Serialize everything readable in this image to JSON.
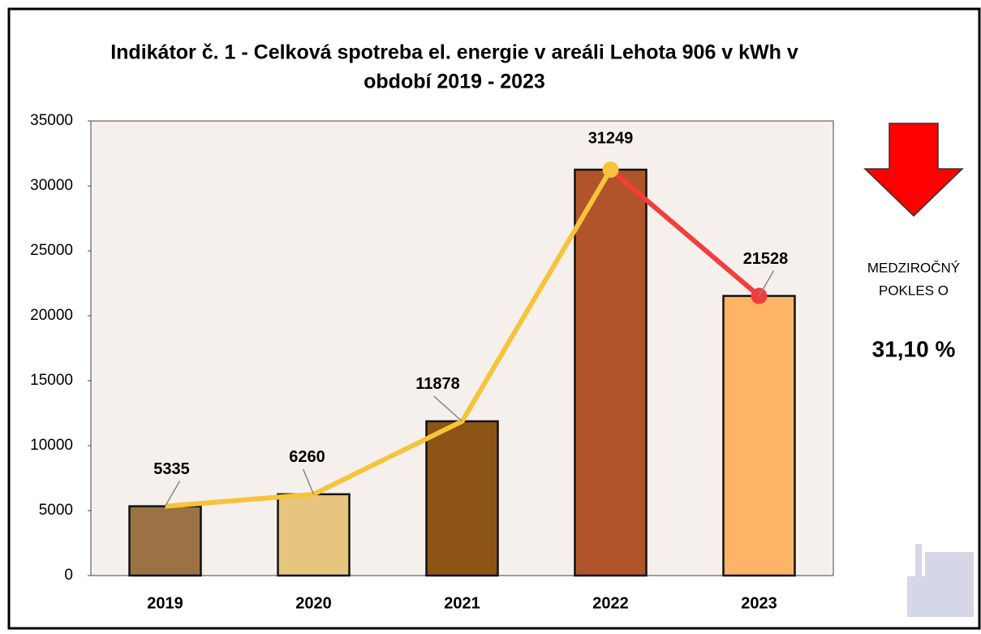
{
  "chart_data": {
    "type": "bar",
    "title": [
      "Indikátor č. 1 - Celková spotreba el. energie v areáli Lehota 906 v kWh v",
      "období 2019 - 2023"
    ],
    "categories": [
      "2019",
      "2020",
      "2021",
      "2022",
      "2023"
    ],
    "values": [
      5335,
      6260,
      11878,
      31249,
      21528
    ],
    "colors": [
      "#9a7243",
      "#e6c57f",
      "#8c5414",
      "#b2542a",
      "#fdb467"
    ],
    "line_color": "#f7c33b",
    "decline_color": "#f23d3d",
    "ylim": [
      0,
      35000
    ],
    "yticks": [
      0,
      5000,
      10000,
      15000,
      20000,
      25000,
      30000,
      35000
    ],
    "annotation": {
      "lines": [
        "MEDZIROČNÝ",
        "POKLES O"
      ],
      "value": "31,10 %"
    }
  }
}
